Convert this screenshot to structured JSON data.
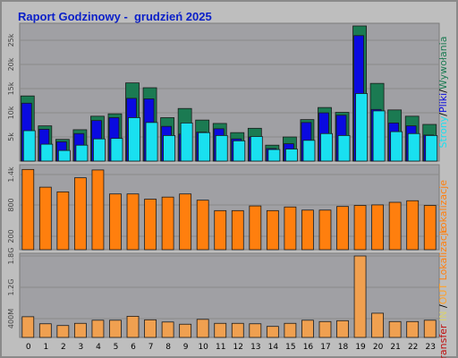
{
  "title": "Raport Godzinowy -  grudzień 2025",
  "colors": {
    "background": "#bebebe",
    "plot": "#a0a0a4",
    "strony": "#1b7a52",
    "pliki": "#0a0ae0",
    "wywolania": "#19e0f0",
    "kbytes": "#ff7f0e",
    "transfer": "#f0a050",
    "title": "#0b20c8"
  },
  "chart_data": [
    {
      "type": "bar",
      "panel": "top",
      "categories": [
        "0",
        "1",
        "2",
        "3",
        "4",
        "5",
        "6",
        "7",
        "8",
        "9",
        "10",
        "11",
        "12",
        "13",
        "14",
        "15",
        "16",
        "17",
        "18",
        "19",
        "20",
        "21",
        "22",
        "23"
      ],
      "y_ticks": [
        "5k",
        "10k",
        "15k",
        "20k",
        "25k"
      ],
      "ylim": [
        0,
        28000
      ],
      "side_label_parts": [
        {
          "text": "Strony",
          "color": "#19e0f0"
        },
        {
          "text": "/",
          "color": "#000000"
        },
        {
          "text": "Pliki",
          "color": "#0a0ae0"
        },
        {
          "text": "/",
          "color": "#000000"
        },
        {
          "text": "Wywołania",
          "color": "#1b7a52"
        }
      ],
      "series": [
        {
          "color": "#1b7a52",
          "values": [
            13500,
            7300,
            4500,
            6500,
            9300,
            9800,
            16200,
            15200,
            9000,
            10900,
            8500,
            7800,
            5900,
            6800,
            3300,
            5000,
            8600,
            11100,
            10100,
            28000,
            16100,
            10600,
            9300,
            7600
          ]
        },
        {
          "color": "#0a0ae0",
          "values": [
            12000,
            6600,
            4000,
            5700,
            8400,
            9000,
            13000,
            12900,
            7200,
            5600,
            6000,
            6700,
            4600,
            5000,
            2600,
            3600,
            8000,
            10000,
            9500,
            26000,
            10700,
            7900,
            7300,
            5400
          ]
        },
        {
          "color": "#19e0f0",
          "values": [
            6300,
            3500,
            2200,
            3300,
            4600,
            4700,
            9000,
            8000,
            5300,
            7900,
            5900,
            5300,
            4200,
            5100,
            2400,
            2500,
            4300,
            5700,
            5300,
            14000,
            10400,
            6100,
            5700,
            5300
          ]
        }
      ]
    },
    {
      "type": "bar",
      "panel": "middle",
      "categories": [
        "0",
        "1",
        "2",
        "3",
        "4",
        "5",
        "6",
        "7",
        "8",
        "9",
        "10",
        "11",
        "12",
        "13",
        "14",
        "15",
        "16",
        "17",
        "18",
        "19",
        "20",
        "21",
        "22",
        "23"
      ],
      "y_ticks": [
        "200",
        "800",
        "1.4k"
      ],
      "ylim": [
        0,
        1580
      ],
      "side_label_parts": [
        {
          "text": "Lokalizacje",
          "color": "#ff7f0e"
        }
      ],
      "series": [
        {
          "color": "#ff7f0e",
          "values": [
            1540,
            1200,
            1110,
            1380,
            1530,
            1070,
            1070,
            970,
            1010,
            1070,
            950,
            750,
            750,
            840,
            750,
            820,
            760,
            760,
            830,
            850,
            860,
            910,
            940,
            850
          ]
        }
      ]
    },
    {
      "type": "bar",
      "panel": "bottom",
      "categories": [
        "0",
        "1",
        "2",
        "3",
        "4",
        "5",
        "6",
        "7",
        "8",
        "9",
        "10",
        "11",
        "12",
        "13",
        "14",
        "15",
        "16",
        "17",
        "18",
        "19",
        "20",
        "21",
        "22",
        "23"
      ],
      "y_ticks": [
        "400M",
        "1.2G",
        "1.8G"
      ],
      "ylim": [
        0,
        1850
      ],
      "side_label_parts": [
        {
          "text": "Transfer",
          "color": "#c01010"
        },
        {
          "text": " ",
          "color": "#000000"
        },
        {
          "text": "IN",
          "color": "#d8d070"
        },
        {
          "text": " ",
          "color": "#000000"
        },
        {
          "text": "/",
          "color": "#000000"
        },
        {
          "text": "OUT",
          "color": "#ffa028"
        },
        {
          "text": " ",
          "color": "#000000"
        },
        {
          "text": "Lokalizacje",
          "color": "#ff7f0e"
        }
      ],
      "series": [
        {
          "color": "#f0a050",
          "values": [
            470,
            310,
            270,
            320,
            390,
            390,
            480,
            400,
            350,
            300,
            410,
            320,
            320,
            310,
            250,
            320,
            390,
            360,
            380,
            1850,
            550,
            360,
            360,
            390
          ]
        }
      ]
    }
  ]
}
